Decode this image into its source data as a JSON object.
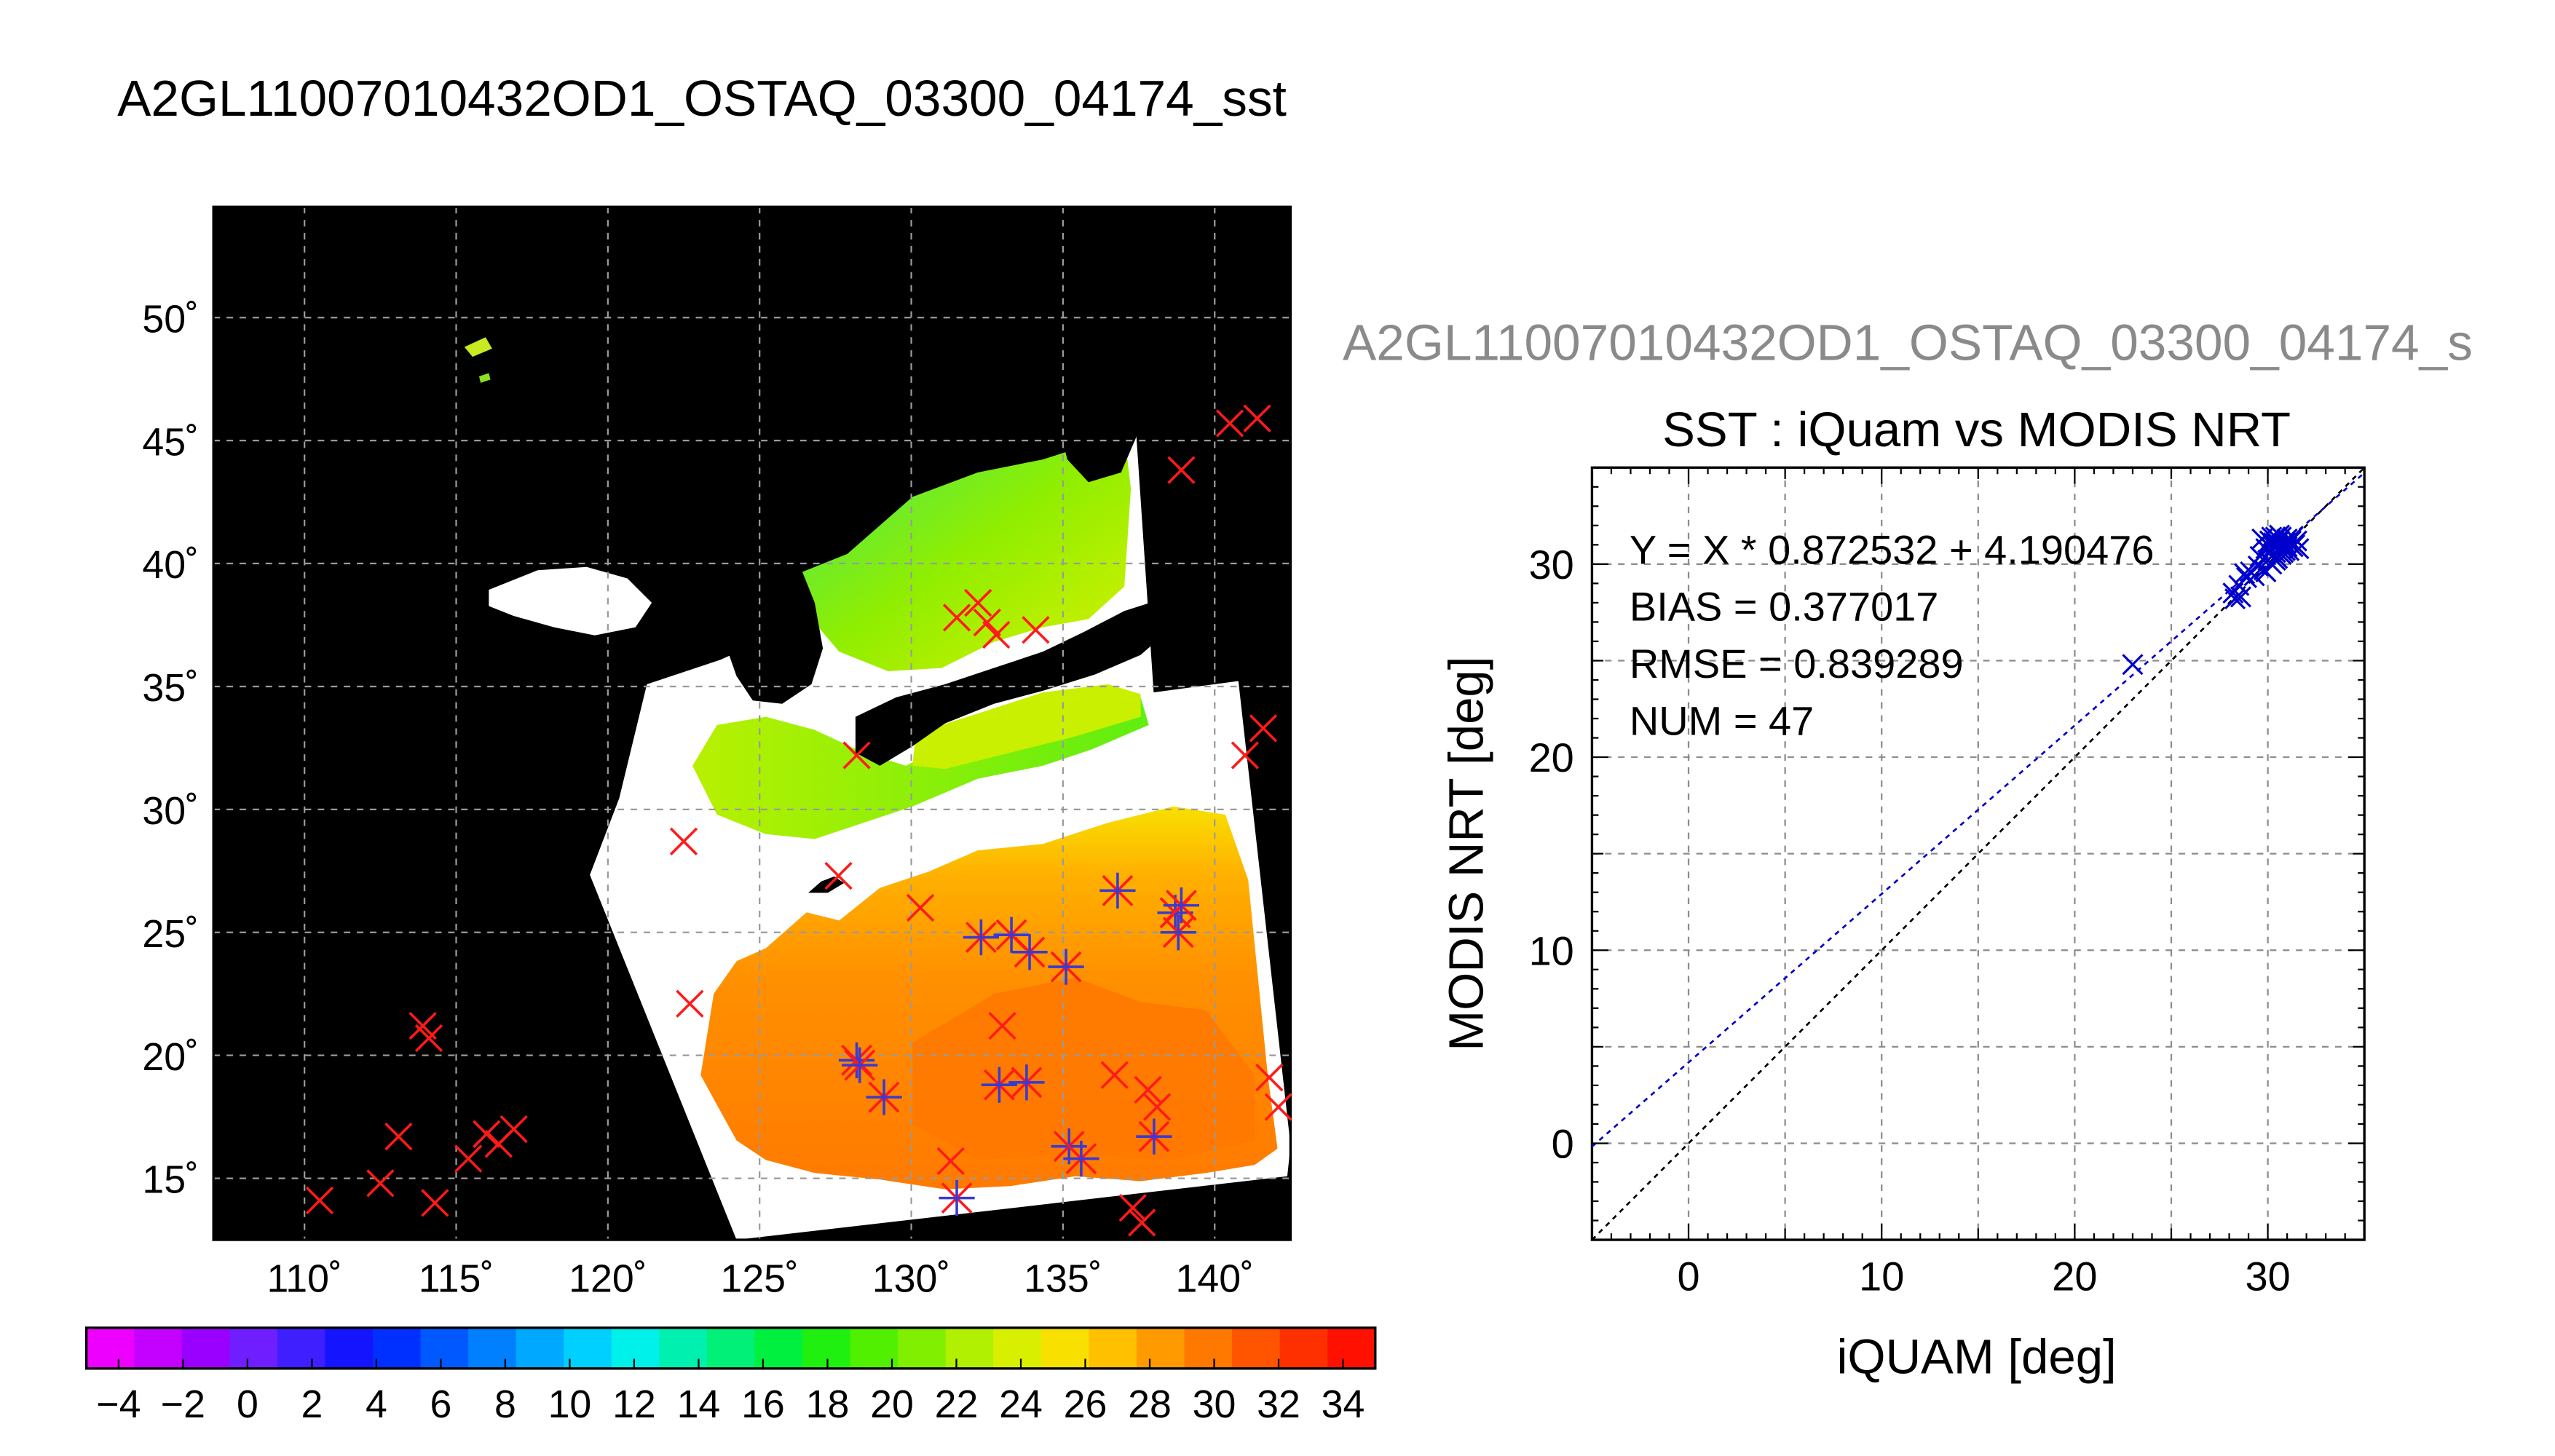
{
  "header": {
    "main_title": "A2GL11007010432OD1_OSTAQ_03300_04174_sst",
    "side_title": "A2GL11007010432OD1_OSTAQ_03300_04174_s"
  },
  "chart_data": [
    {
      "type": "scatter",
      "role": "map",
      "xlim": [
        107,
        142.5
      ],
      "ylim": [
        12.5,
        54.5
      ],
      "x_ticks": [
        110,
        115,
        120,
        125,
        130,
        135,
        140
      ],
      "y_ticks": [
        15,
        20,
        25,
        30,
        35,
        40,
        45,
        50
      ],
      "x_tick_labels": [
        "110˚",
        "115˚",
        "120˚",
        "125˚",
        "130˚",
        "135˚",
        "140˚"
      ],
      "y_tick_labels": [
        "15˚",
        "20˚",
        "25˚",
        "30˚",
        "35˚",
        "40˚",
        "45˚",
        "50˚"
      ],
      "grid": true,
      "colors": {
        "background": "#000000",
        "cloud": "#ffffff",
        "matched_marker": "#3a3ad0",
        "iquam_marker": "#ff1a1a"
      },
      "series": [
        {
          "marker": "x",
          "points": [
            [
              110.5,
              14.1
            ],
            [
              112.5,
              14.8
            ],
            [
              113.1,
              16.7
            ],
            [
              113.9,
              21.2
            ],
            [
              114.1,
              20.7
            ],
            [
              114.3,
              14.0
            ],
            [
              115.4,
              15.8
            ],
            [
              116.0,
              16.8
            ],
            [
              116.4,
              16.4
            ],
            [
              116.9,
              17.0
            ],
            [
              122.5,
              28.7
            ],
            [
              122.7,
              22.1
            ],
            [
              127.6,
              27.3
            ],
            [
              128.2,
              32.2
            ],
            [
              130.3,
              26.0
            ],
            [
              131.3,
              15.7
            ],
            [
              131.5,
              37.8
            ],
            [
              132.2,
              38.4
            ],
            [
              132.5,
              37.6
            ],
            [
              132.8,
              37.1
            ],
            [
              133.0,
              21.2
            ],
            [
              134.1,
              37.3
            ],
            [
              136.7,
              19.2
            ],
            [
              137.3,
              13.8
            ],
            [
              137.6,
              13.2
            ],
            [
              137.8,
              18.6
            ],
            [
              138.1,
              17.9
            ],
            [
              138.9,
              43.8
            ],
            [
              140.5,
              45.7
            ],
            [
              141.0,
              32.2
            ],
            [
              141.4,
              45.9
            ],
            [
              141.6,
              33.3
            ],
            [
              141.8,
              19.1
            ],
            [
              142.1,
              17.9
            ]
          ]
        },
        {
          "marker": "star",
          "points": [
            [
              128.2,
              19.8
            ],
            [
              128.3,
              19.6
            ],
            [
              129.1,
              18.3
            ],
            [
              131.5,
              14.2
            ],
            [
              132.3,
              24.8
            ],
            [
              132.9,
              18.8
            ],
            [
              133.3,
              24.9
            ],
            [
              133.8,
              18.9
            ],
            [
              133.9,
              24.2
            ],
            [
              135.1,
              23.6
            ],
            [
              135.2,
              16.3
            ],
            [
              135.6,
              15.8
            ],
            [
              136.8,
              26.7
            ],
            [
              138.0,
              16.7
            ],
            [
              138.7,
              25.8
            ],
            [
              138.9,
              26.1
            ],
            [
              138.8,
              25.0
            ]
          ]
        }
      ]
    },
    {
      "type": "scatter",
      "role": "comparison",
      "title": "SST : iQuam vs MODIS NRT",
      "xlabel": "iQUAM [deg]",
      "ylabel": "MODIS NRT [deg]",
      "xlim": [
        -5,
        35
      ],
      "ylim": [
        -5,
        35
      ],
      "x_ticks": [
        0,
        10,
        20,
        30
      ],
      "y_ticks": [
        0,
        10,
        20,
        30
      ],
      "grid": true,
      "stats_lines": [
        "Y = X * 0.872532 + 4.190476",
        "BIAS = 0.377017",
        "RMSE = 0.839289",
        "NUM = 47"
      ],
      "fit": {
        "slope": 0.872532,
        "intercept": 4.190476,
        "color": "#0000cc"
      },
      "identity_line_color": "#000000",
      "marker_color": "#0000cc",
      "points": [
        [
          23.0,
          24.8
        ],
        [
          28.2,
          28.5
        ],
        [
          28.3,
          28.2
        ],
        [
          28.5,
          28.9
        ],
        [
          28.6,
          28.3
        ],
        [
          28.8,
          29.5
        ],
        [
          28.9,
          29.3
        ],
        [
          29.1,
          29.6
        ],
        [
          29.3,
          29.4
        ],
        [
          29.5,
          29.9
        ],
        [
          29.6,
          30.4
        ],
        [
          29.7,
          31.3
        ],
        [
          29.8,
          29.7
        ],
        [
          29.9,
          30.8
        ],
        [
          30.0,
          31.0
        ],
        [
          30.0,
          30.2
        ],
        [
          30.1,
          31.2
        ],
        [
          30.1,
          30.6
        ],
        [
          30.2,
          31.4
        ],
        [
          30.2,
          30.0
        ],
        [
          30.3,
          30.9
        ],
        [
          30.3,
          31.1
        ],
        [
          30.4,
          30.6
        ],
        [
          30.4,
          31.4
        ],
        [
          30.5,
          30.3
        ],
        [
          30.5,
          31.0
        ],
        [
          30.6,
          30.8
        ],
        [
          30.6,
          31.2
        ],
        [
          30.7,
          30.5
        ],
        [
          30.7,
          31.4
        ],
        [
          30.8,
          30.9
        ],
        [
          30.8,
          30.6
        ],
        [
          30.9,
          31.1
        ],
        [
          30.9,
          30.7
        ],
        [
          31.0,
          31.3
        ],
        [
          31.0,
          30.9
        ],
        [
          31.1,
          31.1
        ],
        [
          31.1,
          30.7
        ],
        [
          31.2,
          31.2
        ],
        [
          31.3,
          30.9
        ],
        [
          31.3,
          31.4
        ],
        [
          31.4,
          31.0
        ],
        [
          31.5,
          31.2
        ],
        [
          31.6,
          30.8
        ],
        [
          30.4,
          30.2
        ],
        [
          29.9,
          29.6
        ],
        [
          30.6,
          31.5
        ]
      ]
    },
    {
      "type": "heatmap",
      "role": "colorbar",
      "min": -5,
      "max": 35,
      "tick_labels": [
        "−4",
        "−2",
        "0",
        "2",
        "4",
        "6",
        "8",
        "10",
        "12",
        "14",
        "16",
        "18",
        "20",
        "22",
        "24",
        "26",
        "28",
        "30",
        "32",
        "34"
      ],
      "tick_values": [
        -4,
        -2,
        0,
        2,
        4,
        6,
        8,
        10,
        12,
        14,
        16,
        18,
        20,
        22,
        24,
        26,
        28,
        30,
        32,
        34
      ],
      "colors": [
        "#ee00ff",
        "#c400ff",
        "#9a00ff",
        "#6e1eff",
        "#3f1eff",
        "#1414ff",
        "#0030ff",
        "#0058ff",
        "#0080ff",
        "#00a8ff",
        "#00d0ff",
        "#00f0ea",
        "#00f0b0",
        "#00f078",
        "#00f040",
        "#20f010",
        "#50f000",
        "#80f000",
        "#b0f000",
        "#d8f000",
        "#f8e000",
        "#ffc000",
        "#ff9a00",
        "#ff7800",
        "#ff5500",
        "#ff3000",
        "#ff1000"
      ]
    }
  ]
}
